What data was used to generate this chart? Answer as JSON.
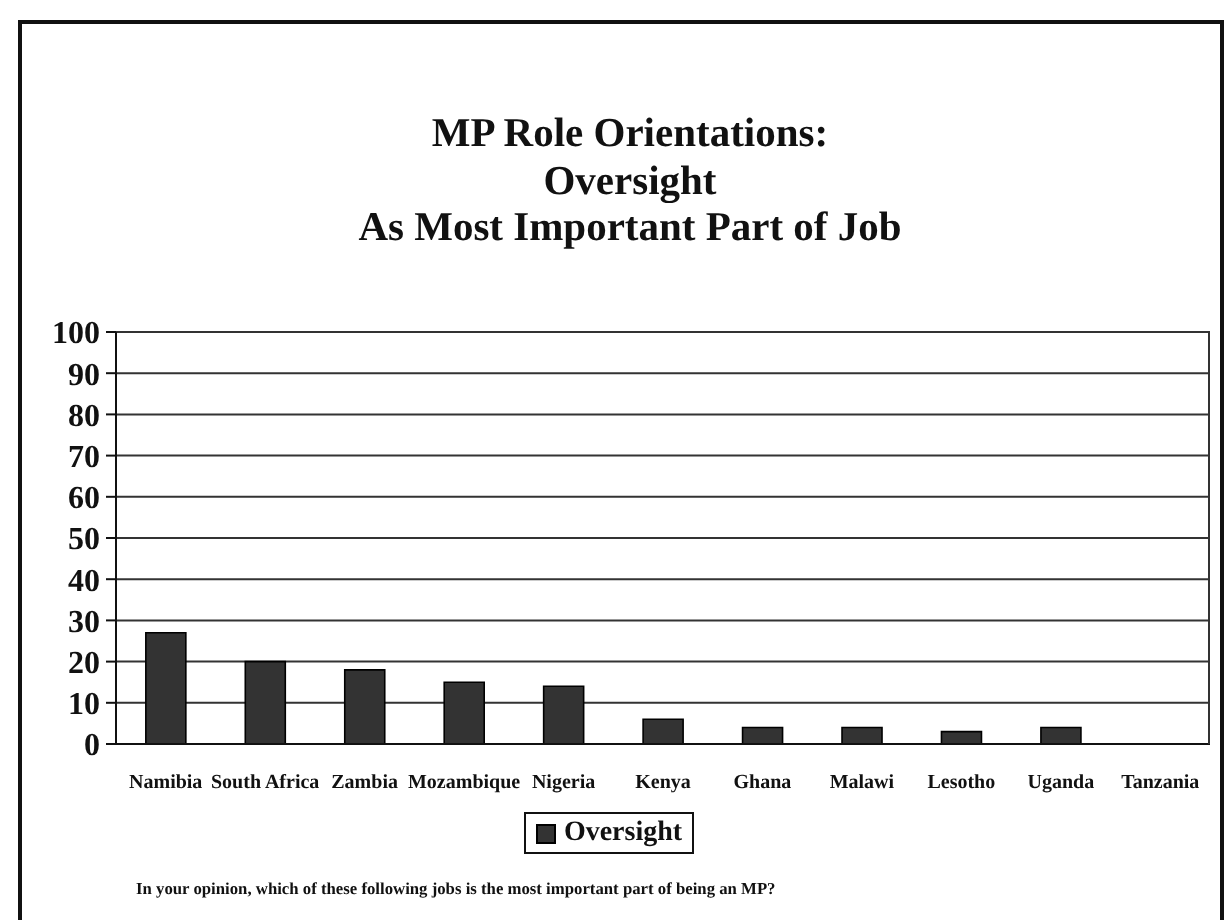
{
  "chart_data": {
    "type": "bar",
    "title": "MP Role Orientations:\nOversight\nAs Most Important Part of Job",
    "categories": [
      "Namibia",
      "South Africa",
      "Zambia",
      "Mozambique",
      "Nigeria",
      "Kenya",
      "Ghana",
      "Malawi",
      "Lesotho",
      "Uganda",
      "Tanzania"
    ],
    "series": [
      {
        "name": "Oversight",
        "color": "#333333",
        "values": [
          27,
          20,
          18,
          15,
          14,
          6,
          4,
          4,
          3,
          4,
          0
        ]
      }
    ],
    "ylim": [
      0,
      100
    ],
    "yticks": [
      0,
      10,
      20,
      30,
      40,
      50,
      60,
      70,
      80,
      90,
      100
    ],
    "grid": "y",
    "legend": "bottom",
    "annotations": [
      "In your opinion, which of these following jobs is the most important part of being an MP?"
    ]
  }
}
